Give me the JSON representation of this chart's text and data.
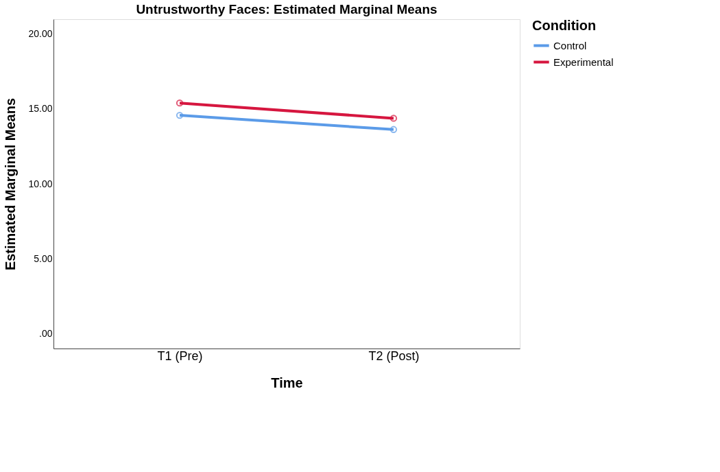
{
  "chart_data": {
    "type": "line",
    "title": "Untrustworthy Faces: Estimated Marginal Means",
    "xlabel": "Time",
    "ylabel": "Estimated Marginal Means",
    "legend_title": "Condition",
    "categories": [
      "T1 (Pre)",
      "T2 (Post)"
    ],
    "series": [
      {
        "name": "Control",
        "color": "#5b9be8",
        "values": [
          14.58,
          13.63
        ]
      },
      {
        "name": "Experimental",
        "color": "#d6163f",
        "values": [
          15.4,
          14.38
        ]
      }
    ],
    "ylim": [
      -1,
      21
    ],
    "yticks": [
      {
        "value": 0,
        "label": ".00"
      },
      {
        "value": 5,
        "label": "5.00"
      },
      {
        "value": 10,
        "label": "10.00"
      },
      {
        "value": 15,
        "label": "15.00"
      },
      {
        "value": 20,
        "label": "20.00"
      }
    ],
    "grid": false,
    "legend": "top right",
    "marker": "circle",
    "line_style": "solid"
  }
}
